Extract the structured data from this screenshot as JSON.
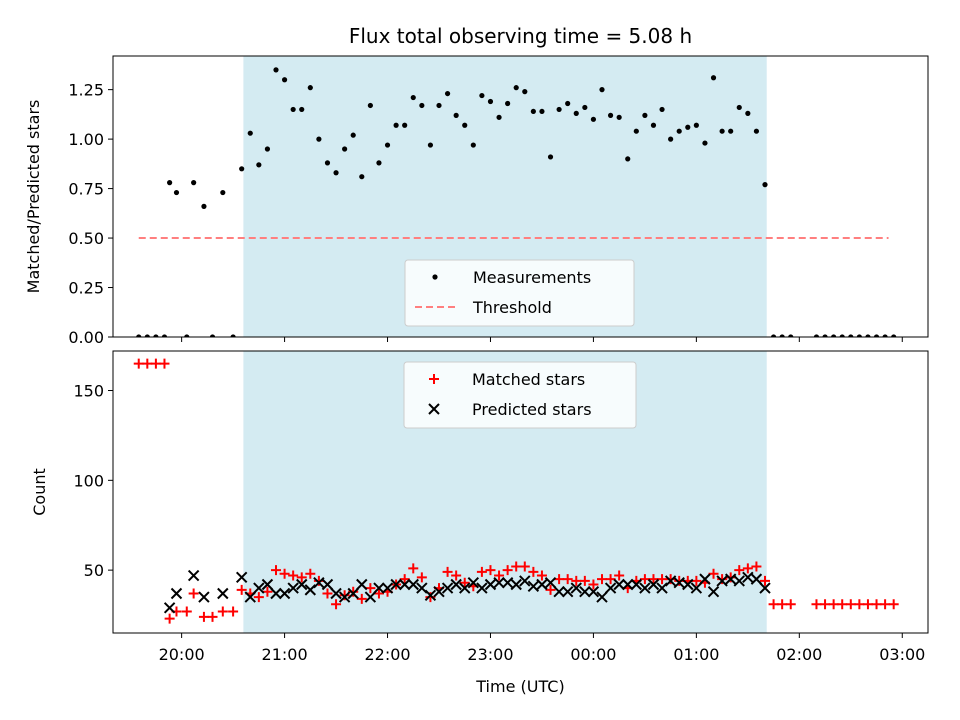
{
  "chart_data": [
    {
      "type": "scatter",
      "title": "Flux total observing time = 5.08 h",
      "xlabel": "",
      "ylabel": "Matched/Predicted stars",
      "xlim": [
        "19:20",
        "03:15"
      ],
      "ylim": [
        0,
        1.42
      ],
      "yticks": [
        0.0,
        0.25,
        0.5,
        0.75,
        1.0,
        1.25
      ],
      "ytick_labels": [
        "0.00",
        "0.25",
        "0.50",
        "0.75",
        "1.00",
        "1.25"
      ],
      "xticks": [
        "20:00",
        "21:00",
        "22:00",
        "23:00",
        "00:00",
        "01:00",
        "02:00",
        "03:00"
      ],
      "shaded_span": {
        "start": "20:36",
        "end": "01:41",
        "color": "#add8e6"
      },
      "threshold": {
        "y": 0.5,
        "x_start": "19:35",
        "x_end": "02:52",
        "color": "#ff7f7f",
        "style": "dashed"
      },
      "legend": {
        "placement": "lower center",
        "entries": [
          {
            "label": "Measurements",
            "marker": "dot",
            "color": "#000000"
          },
          {
            "label": "Threshold",
            "marker": "dashed-line",
            "color": "#ff7f7f"
          }
        ]
      },
      "series": [
        {
          "name": "Measurements",
          "color": "#000000",
          "points": [
            [
              "19:35",
              0.0
            ],
            [
              "19:40",
              0.0
            ],
            [
              "19:45",
              0.0
            ],
            [
              "19:50",
              0.0
            ],
            [
              "19:53",
              0.78
            ],
            [
              "19:57",
              0.73
            ],
            [
              "20:03",
              0.0
            ],
            [
              "20:07",
              0.78
            ],
            [
              "20:13",
              0.66
            ],
            [
              "20:18",
              0.0
            ],
            [
              "20:24",
              0.73
            ],
            [
              "20:30",
              0.0
            ],
            [
              "20:35",
              0.85
            ],
            [
              "20:40",
              1.03
            ],
            [
              "20:45",
              0.87
            ],
            [
              "20:50",
              0.95
            ],
            [
              "20:55",
              1.35
            ],
            [
              "21:00",
              1.3
            ],
            [
              "21:05",
              1.15
            ],
            [
              "21:10",
              1.15
            ],
            [
              "21:15",
              1.26
            ],
            [
              "21:20",
              1.0
            ],
            [
              "21:25",
              0.88
            ],
            [
              "21:30",
              0.83
            ],
            [
              "21:35",
              0.95
            ],
            [
              "21:40",
              1.02
            ],
            [
              "21:45",
              0.81
            ],
            [
              "21:50",
              1.17
            ],
            [
              "21:55",
              0.88
            ],
            [
              "22:00",
              0.97
            ],
            [
              "22:05",
              1.07
            ],
            [
              "22:10",
              1.07
            ],
            [
              "22:15",
              1.21
            ],
            [
              "22:20",
              1.17
            ],
            [
              "22:25",
              0.97
            ],
            [
              "22:30",
              1.17
            ],
            [
              "22:35",
              1.23
            ],
            [
              "22:40",
              1.12
            ],
            [
              "22:45",
              1.07
            ],
            [
              "22:50",
              0.97
            ],
            [
              "22:55",
              1.22
            ],
            [
              "23:00",
              1.19
            ],
            [
              "23:05",
              1.11
            ],
            [
              "23:10",
              1.18
            ],
            [
              "23:15",
              1.26
            ],
            [
              "23:20",
              1.24
            ],
            [
              "23:25",
              1.14
            ],
            [
              "23:30",
              1.14
            ],
            [
              "23:35",
              0.91
            ],
            [
              "23:40",
              1.15
            ],
            [
              "23:45",
              1.18
            ],
            [
              "23:50",
              1.13
            ],
            [
              "23:55",
              1.16
            ],
            [
              "00:00",
              1.1
            ],
            [
              "00:05",
              1.25
            ],
            [
              "00:10",
              1.12
            ],
            [
              "00:15",
              1.11
            ],
            [
              "00:20",
              0.9
            ],
            [
              "00:25",
              1.04
            ],
            [
              "00:30",
              1.12
            ],
            [
              "00:35",
              1.07
            ],
            [
              "00:40",
              1.15
            ],
            [
              "00:45",
              1.0
            ],
            [
              "00:50",
              1.04
            ],
            [
              "00:55",
              1.06
            ],
            [
              "01:00",
              1.07
            ],
            [
              "01:05",
              0.98
            ],
            [
              "01:10",
              1.31
            ],
            [
              "01:15",
              1.04
            ],
            [
              "01:20",
              1.04
            ],
            [
              "01:25",
              1.16
            ],
            [
              "01:30",
              1.13
            ],
            [
              "01:35",
              1.04
            ],
            [
              "01:40",
              0.77
            ],
            [
              "01:45",
              0.0
            ],
            [
              "01:50",
              0.0
            ],
            [
              "01:55",
              0.0
            ],
            [
              "02:10",
              0.0
            ],
            [
              "02:15",
              0.0
            ],
            [
              "02:20",
              0.0
            ],
            [
              "02:25",
              0.0
            ],
            [
              "02:30",
              0.0
            ],
            [
              "02:35",
              0.0
            ],
            [
              "02:40",
              0.0
            ],
            [
              "02:45",
              0.0
            ],
            [
              "02:50",
              0.0
            ],
            [
              "02:55",
              0.0
            ]
          ]
        }
      ]
    },
    {
      "type": "scatter",
      "title": "",
      "xlabel": "Time (UTC)",
      "ylabel": "Count",
      "xlim": [
        "19:20",
        "03:15"
      ],
      "ylim": [
        15,
        172
      ],
      "yticks": [
        50,
        100,
        150
      ],
      "ytick_labels": [
        "50",
        "100",
        "150"
      ],
      "xticks": [
        "20:00",
        "21:00",
        "22:00",
        "23:00",
        "00:00",
        "01:00",
        "02:00",
        "03:00"
      ],
      "xtick_labels": [
        "20:00",
        "21:00",
        "22:00",
        "23:00",
        "00:00",
        "01:00",
        "02:00",
        "03:00"
      ],
      "shaded_span": {
        "start": "20:36",
        "end": "01:41",
        "color": "#add8e6"
      },
      "legend": {
        "placement": "upper center",
        "entries": [
          {
            "label": "Matched stars",
            "marker": "plus",
            "color": "#ff0000"
          },
          {
            "label": "Predicted stars",
            "marker": "x",
            "color": "#000000"
          }
        ]
      },
      "series": [
        {
          "name": "Matched stars",
          "marker": "plus",
          "color": "#ff0000",
          "points": [
            [
              "19:35",
              165
            ],
            [
              "19:40",
              165
            ],
            [
              "19:45",
              165
            ],
            [
              "19:50",
              165
            ],
            [
              "19:53",
              23
            ],
            [
              "19:57",
              27
            ],
            [
              "20:03",
              27
            ],
            [
              "20:07",
              37
            ],
            [
              "20:13",
              24
            ],
            [
              "20:18",
              24
            ],
            [
              "20:24",
              27
            ],
            [
              "20:30",
              27
            ],
            [
              "20:35",
              39
            ],
            [
              "20:40",
              37
            ],
            [
              "20:45",
              35
            ],
            [
              "20:50",
              38
            ],
            [
              "20:55",
              50
            ],
            [
              "21:00",
              48
            ],
            [
              "21:05",
              47
            ],
            [
              "21:10",
              46
            ],
            [
              "21:15",
              48
            ],
            [
              "21:20",
              44
            ],
            [
              "21:25",
              37
            ],
            [
              "21:30",
              31
            ],
            [
              "21:35",
              36
            ],
            [
              "21:40",
              38
            ],
            [
              "21:45",
              34
            ],
            [
              "21:50",
              40
            ],
            [
              "21:55",
              37
            ],
            [
              "22:00",
              38
            ],
            [
              "22:05",
              42
            ],
            [
              "22:10",
              45
            ],
            [
              "22:15",
              51
            ],
            [
              "22:20",
              46
            ],
            [
              "22:25",
              35
            ],
            [
              "22:30",
              40
            ],
            [
              "22:35",
              49
            ],
            [
              "22:40",
              47
            ],
            [
              "22:45",
              43
            ],
            [
              "22:50",
              41
            ],
            [
              "22:55",
              49
            ],
            [
              "23:00",
              50
            ],
            [
              "23:05",
              47
            ],
            [
              "23:10",
              50
            ],
            [
              "23:15",
              52
            ],
            [
              "23:20",
              52
            ],
            [
              "23:25",
              49
            ],
            [
              "23:30",
              47
            ],
            [
              "23:35",
              39
            ],
            [
              "23:40",
              45
            ],
            [
              "23:45",
              45
            ],
            [
              "23:50",
              44
            ],
            [
              "23:55",
              44
            ],
            [
              "00:00",
              42
            ],
            [
              "00:05",
              45
            ],
            [
              "00:10",
              45
            ],
            [
              "00:15",
              47
            ],
            [
              "00:20",
              40
            ],
            [
              "00:25",
              44
            ],
            [
              "00:30",
              45
            ],
            [
              "00:35",
              45
            ],
            [
              "00:40",
              45
            ],
            [
              "00:45",
              45
            ],
            [
              "00:50",
              44
            ],
            [
              "00:55",
              44
            ],
            [
              "01:00",
              44
            ],
            [
              "01:05",
              43
            ],
            [
              "01:10",
              48
            ],
            [
              "01:15",
              45
            ],
            [
              "01:20",
              46
            ],
            [
              "01:25",
              50
            ],
            [
              "01:30",
              51
            ],
            [
              "01:35",
              52
            ],
            [
              "01:40",
              44
            ],
            [
              "01:45",
              31
            ],
            [
              "01:50",
              31
            ],
            [
              "01:55",
              31
            ],
            [
              "02:10",
              31
            ],
            [
              "02:15",
              31
            ],
            [
              "02:20",
              31
            ],
            [
              "02:25",
              31
            ],
            [
              "02:30",
              31
            ],
            [
              "02:35",
              31
            ],
            [
              "02:40",
              31
            ],
            [
              "02:45",
              31
            ],
            [
              "02:50",
              31
            ],
            [
              "02:55",
              31
            ]
          ]
        },
        {
          "name": "Predicted stars",
          "marker": "x",
          "color": "#000000",
          "points": [
            [
              "19:53",
              29
            ],
            [
              "19:57",
              37
            ],
            [
              "20:07",
              47
            ],
            [
              "20:13",
              35
            ],
            [
              "20:24",
              37
            ],
            [
              "20:35",
              46
            ],
            [
              "20:40",
              35
            ],
            [
              "20:45",
              40
            ],
            [
              "20:50",
              42
            ],
            [
              "20:55",
              37
            ],
            [
              "21:00",
              37
            ],
            [
              "21:05",
              40
            ],
            [
              "21:10",
              42
            ],
            [
              "21:15",
              39
            ],
            [
              "21:20",
              43
            ],
            [
              "21:25",
              42
            ],
            [
              "21:30",
              37
            ],
            [
              "21:35",
              35
            ],
            [
              "21:40",
              37
            ],
            [
              "21:45",
              42
            ],
            [
              "21:50",
              35
            ],
            [
              "21:55",
              40
            ],
            [
              "22:00",
              40
            ],
            [
              "22:05",
              42
            ],
            [
              "22:10",
              42
            ],
            [
              "22:15",
              42
            ],
            [
              "22:20",
              40
            ],
            [
              "22:25",
              36
            ],
            [
              "22:30",
              38
            ],
            [
              "22:35",
              40
            ],
            [
              "22:40",
              42
            ],
            [
              "22:45",
              40
            ],
            [
              "22:50",
              43
            ],
            [
              "22:55",
              40
            ],
            [
              "23:00",
              42
            ],
            [
              "23:05",
              43
            ],
            [
              "23:10",
              43
            ],
            [
              "23:15",
              42
            ],
            [
              "23:20",
              44
            ],
            [
              "23:25",
              41
            ],
            [
              "23:30",
              42
            ],
            [
              "23:35",
              43
            ],
            [
              "23:40",
              38
            ],
            [
              "23:45",
              38
            ],
            [
              "23:50",
              40
            ],
            [
              "23:55",
              38
            ],
            [
              "00:00",
              38
            ],
            [
              "00:05",
              35
            ],
            [
              "00:10",
              40
            ],
            [
              "00:15",
              42
            ],
            [
              "00:20",
              42
            ],
            [
              "00:25",
              42
            ],
            [
              "00:30",
              40
            ],
            [
              "00:35",
              42
            ],
            [
              "00:40",
              40
            ],
            [
              "00:45",
              44
            ],
            [
              "00:50",
              43
            ],
            [
              "00:55",
              42
            ],
            [
              "01:00",
              40
            ],
            [
              "01:05",
              45
            ],
            [
              "01:10",
              38
            ],
            [
              "01:15",
              44
            ],
            [
              "01:20",
              45
            ],
            [
              "01:25",
              44
            ],
            [
              "01:30",
              46
            ],
            [
              "01:35",
              45
            ],
            [
              "01:40",
              40
            ]
          ]
        }
      ]
    }
  ]
}
